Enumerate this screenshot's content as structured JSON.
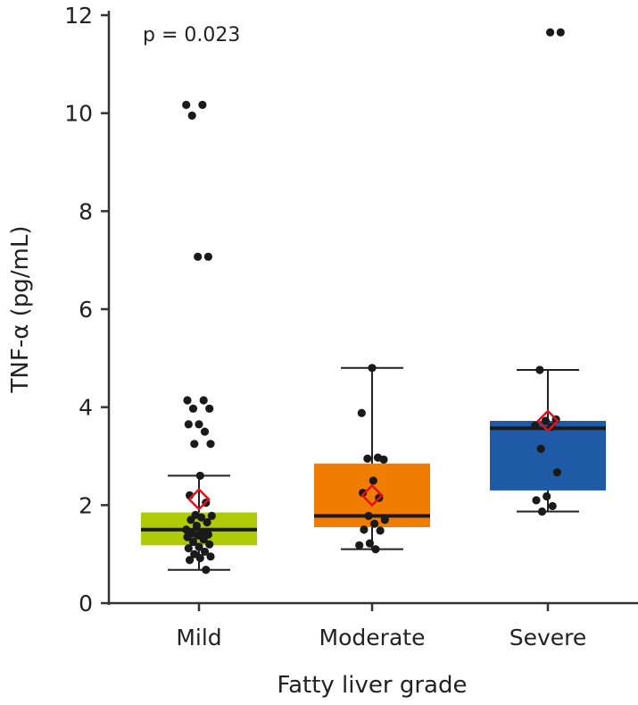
{
  "chart_data": {
    "type": "box",
    "annotation": "p = 0.023",
    "xlabel": "Fatty liver grade",
    "ylabel": "TNF-α (pg/mL)",
    "ylim": [
      0,
      12
    ],
    "yticks": [
      "0",
      "2",
      "4",
      "6",
      "8",
      "10",
      "12"
    ],
    "categories": [
      "Mild",
      "Moderate",
      "Severe"
    ],
    "colors": {
      "Mild": "#aecb06",
      "Moderate": "#f07d00",
      "Severe": "#1f5aa6",
      "mean_marker": "#e3101b",
      "points": "#1a1a1a"
    },
    "boxes": [
      {
        "name": "Mild",
        "whisker_low": 0.68,
        "q1": 1.18,
        "median": 1.5,
        "q3": 1.85,
        "whisker_high": 2.6,
        "mean": 2.12,
        "points": [
          10.17,
          10.17,
          9.95,
          7.07,
          7.07,
          4.14,
          4.14,
          3.97,
          3.97,
          3.65,
          3.65,
          3.5,
          3.25,
          3.25,
          2.6,
          2.2,
          2.05,
          1.8,
          1.78,
          1.75,
          1.7,
          1.65,
          1.58,
          1.5,
          1.45,
          1.42,
          1.4,
          1.38,
          1.35,
          1.3,
          1.25,
          1.2,
          1.15,
          1.12,
          1.05,
          1.0,
          0.95,
          0.92,
          0.88,
          0.68
        ]
      },
      {
        "name": "Moderate",
        "whisker_low": 1.1,
        "q1": 1.55,
        "median": 1.78,
        "q3": 2.85,
        "whisker_high": 4.8,
        "mean": 2.2,
        "points": [
          4.8,
          3.88,
          2.97,
          2.95,
          2.93,
          2.5,
          2.25,
          2.15,
          1.78,
          1.7,
          1.62,
          1.5,
          1.48,
          1.22,
          1.18,
          1.1
        ]
      },
      {
        "name": "Severe",
        "whisker_low": 1.87,
        "q1": 2.3,
        "median": 3.57,
        "q3": 3.72,
        "whisker_high": 4.76,
        "mean": 3.72,
        "points": [
          11.65,
          11.65,
          4.76,
          3.75,
          3.72,
          3.62,
          3.6,
          3.15,
          2.67,
          2.18,
          2.1,
          1.98,
          1.87
        ]
      }
    ]
  }
}
